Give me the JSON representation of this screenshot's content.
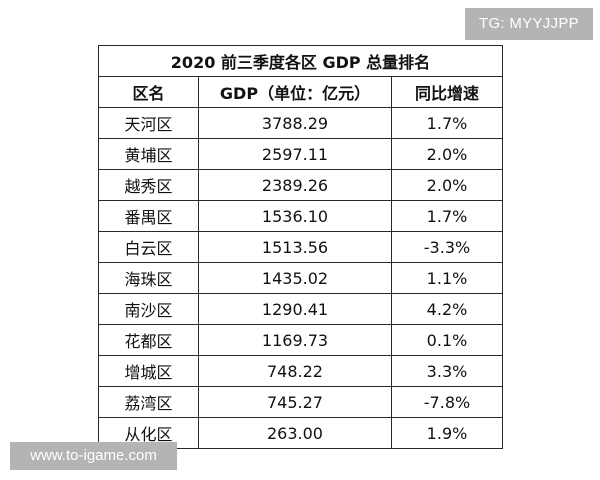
{
  "watermark_top": "TG: MYYJJPP",
  "watermark_bottom": "www.to-igame.com",
  "table": {
    "title": "2020 前三季度各区 GDP 总量排名",
    "headers": [
      "区名",
      "GDP（单位：亿元）",
      "同比增速"
    ],
    "rows": [
      [
        "天河区",
        "3788.29",
        "1.7%"
      ],
      [
        "黄埔区",
        "2597.11",
        "2.0%"
      ],
      [
        "越秀区",
        "2389.26",
        "2.0%"
      ],
      [
        "番禺区",
        "1536.10",
        "1.7%"
      ],
      [
        "白云区",
        "1513.56",
        "-3.3%"
      ],
      [
        "海珠区",
        "1435.02",
        "1.1%"
      ],
      [
        "南沙区",
        "1290.41",
        "4.2%"
      ],
      [
        "花都区",
        "1169.73",
        "0.1%"
      ],
      [
        "增城区",
        "748.22",
        "3.3%"
      ],
      [
        "荔湾区",
        "745.27",
        "-7.8%"
      ],
      [
        "从化区",
        "263.00",
        "1.9%"
      ]
    ]
  }
}
